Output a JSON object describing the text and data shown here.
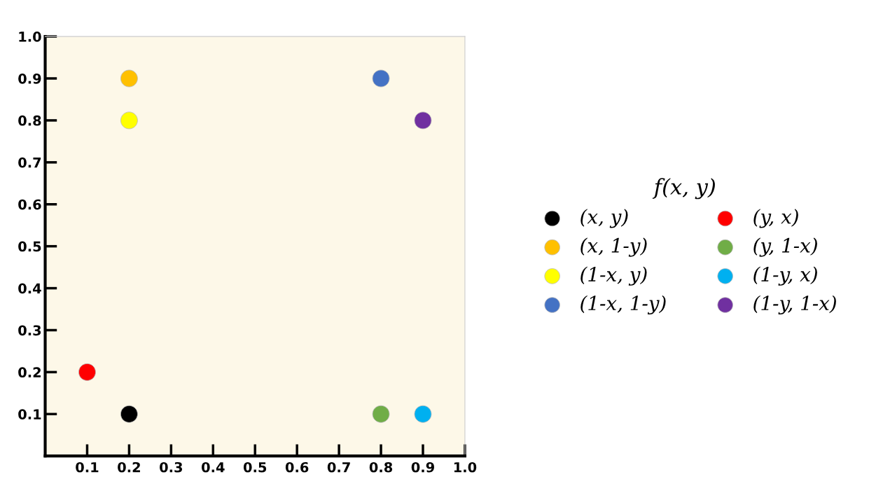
{
  "chart_data": {
    "type": "scatter",
    "legend_title": "f(x, y)",
    "legend": "right",
    "marker": "circle",
    "grid": false,
    "xlim": [
      0,
      1.0
    ],
    "ylim": [
      0,
      1.0
    ],
    "xticks": [
      0.1,
      0.2,
      0.3,
      0.4,
      0.5,
      0.6,
      0.7,
      0.8,
      0.9,
      {
        "value": 1.0,
        "label": "1.0"
      }
    ],
    "yticks": [
      0.1,
      0.2,
      0.3,
      0.4,
      0.5,
      0.6,
      0.7,
      0.8,
      0.9,
      {
        "value": 1.0,
        "label": "1.0"
      }
    ],
    "series": [
      {
        "name": "(x, y)",
        "color": "#000000",
        "x": [
          0.2
        ],
        "values": [
          0.1
        ]
      },
      {
        "name": "(x, 1-y)",
        "color": "#ffc000",
        "x": [
          0.2
        ],
        "values": [
          0.9
        ]
      },
      {
        "name": "(1-x, y)",
        "color": "#ffff00",
        "x": [
          0.2
        ],
        "values": [
          0.8
        ]
      },
      {
        "name": "(1-x, 1-y)",
        "color": "#4472c4",
        "x": [
          0.8
        ],
        "values": [
          0.9
        ]
      },
      {
        "name": "(y, x)",
        "color": "#ff0000",
        "x": [
          0.1
        ],
        "values": [
          0.2
        ]
      },
      {
        "name": "(y, 1-x)",
        "color": "#70ad47",
        "x": [
          0.8
        ],
        "values": [
          0.1
        ]
      },
      {
        "name": "(1-y, x)",
        "color": "#00b0f0",
        "x": [
          0.9
        ],
        "values": [
          0.1
        ]
      },
      {
        "name": "(1-y, 1-x)",
        "color": "#7030a0",
        "x": [
          0.9
        ],
        "values": [
          0.8
        ]
      }
    ]
  }
}
